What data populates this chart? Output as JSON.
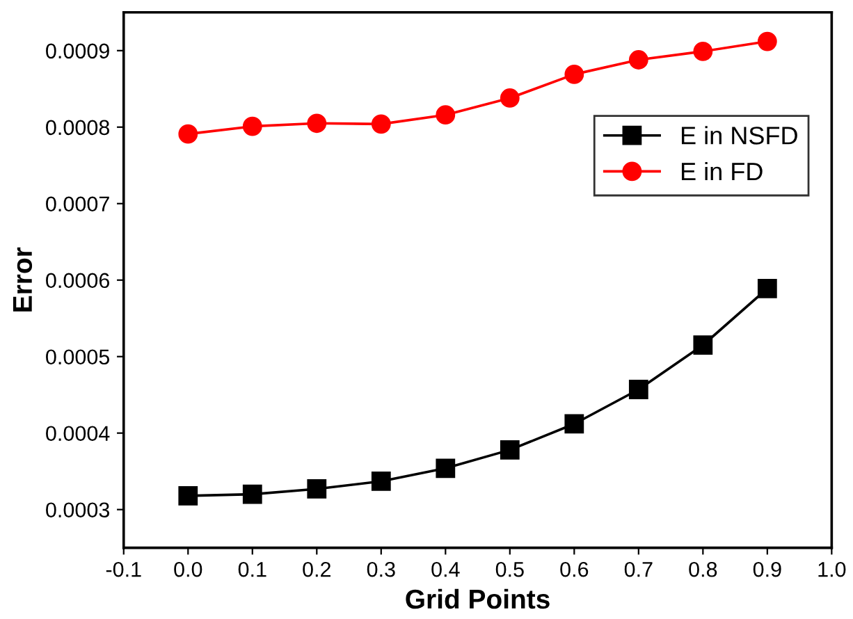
{
  "chart_data": {
    "type": "line",
    "xlabel": "Grid Points",
    "ylabel": "Error",
    "x": [
      0.0,
      0.1,
      0.2,
      0.3,
      0.4,
      0.5,
      0.6,
      0.7,
      0.8,
      0.9
    ],
    "series": [
      {
        "name": "E in NSFD",
        "color": "#000000",
        "marker": "square",
        "values": [
          0.000318,
          0.00032,
          0.000327,
          0.000337,
          0.000354,
          0.000378,
          0.000412,
          0.000457,
          0.000515,
          0.000589
        ]
      },
      {
        "name": "E in FD",
        "color": "#ff0000",
        "marker": "circle",
        "values": [
          0.000791,
          0.000801,
          0.000805,
          0.000804,
          0.000816,
          0.000838,
          0.000869,
          0.000888,
          0.000899,
          0.000912
        ]
      }
    ],
    "xlim": [
      -0.1,
      1.0
    ],
    "xticks": [
      -0.1,
      {
        "value": 0,
        "label": "0.0"
      },
      0.1,
      0.2,
      0.3,
      0.4,
      0.5,
      0.6,
      0.7,
      0.8,
      0.9,
      {
        "value": 1,
        "label": "1.0"
      }
    ],
    "ylim": [
      0.00025,
      0.00095
    ],
    "yticks": [
      0.0003,
      0.0004,
      0.0005,
      0.0006,
      0.0007,
      0.0008,
      0.0009
    ],
    "grid": false,
    "legend": "top right",
    "line_style": "solid"
  }
}
